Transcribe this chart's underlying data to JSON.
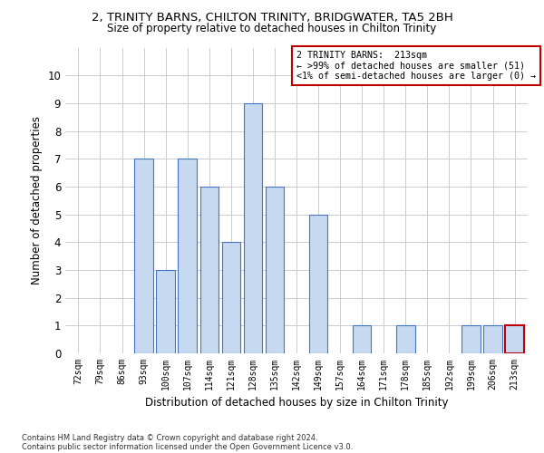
{
  "title": "2, TRINITY BARNS, CHILTON TRINITY, BRIDGWATER, TA5 2BH",
  "subtitle": "Size of property relative to detached houses in Chilton Trinity",
  "xlabel": "Distribution of detached houses by size in Chilton Trinity",
  "ylabel": "Number of detached properties",
  "categories": [
    "72sqm",
    "79sqm",
    "86sqm",
    "93sqm",
    "100sqm",
    "107sqm",
    "114sqm",
    "121sqm",
    "128sqm",
    "135sqm",
    "142sqm",
    "149sqm",
    "157sqm",
    "164sqm",
    "171sqm",
    "178sqm",
    "185sqm",
    "192sqm",
    "199sqm",
    "206sqm",
    "213sqm"
  ],
  "values": [
    0,
    0,
    0,
    7,
    3,
    7,
    6,
    4,
    9,
    6,
    0,
    5,
    0,
    1,
    0,
    1,
    0,
    0,
    1,
    1,
    1
  ],
  "bar_color": "#c6d9f0",
  "bar_edge_color": "#4472c4",
  "highlight_index": 20,
  "highlight_bar_edge_color": "#c00000",
  "ylim": [
    0,
    11
  ],
  "yticks": [
    0,
    1,
    2,
    3,
    4,
    5,
    6,
    7,
    8,
    9,
    10,
    11
  ],
  "box_text_line1": "2 TRINITY BARNS:  213sqm",
  "box_text_line2": "← >99% of detached houses are smaller (51)",
  "box_text_line3": "<1% of semi-detached houses are larger (0) →",
  "box_color": "#c00000",
  "footnote1": "Contains HM Land Registry data © Crown copyright and database right 2024.",
  "footnote2": "Contains public sector information licensed under the Open Government Licence v3.0.",
  "background_color": "#ffffff",
  "grid_color": "#cccccc"
}
